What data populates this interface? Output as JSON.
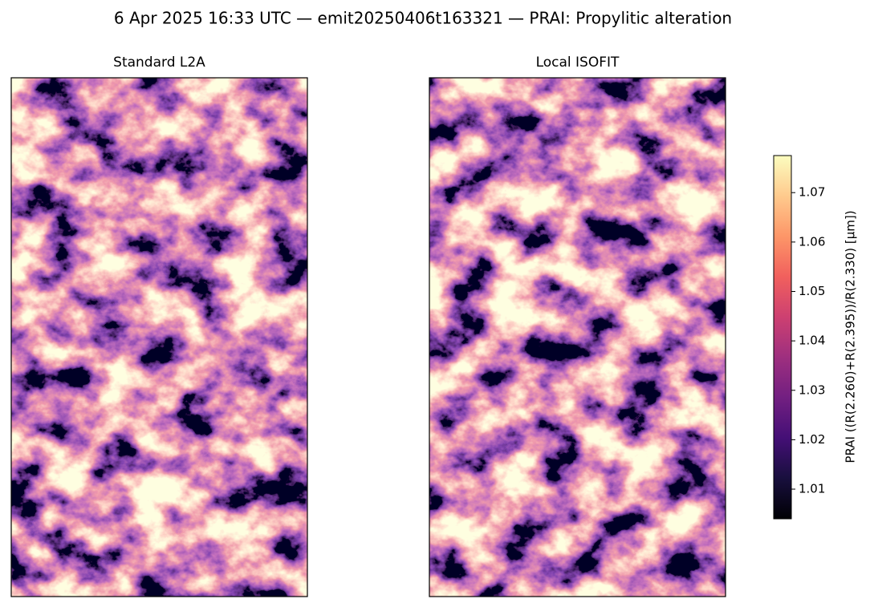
{
  "chart_data": {
    "type": "image",
    "title": "6 Apr 2025 16:33 UTC — emit20250406t163321 — PRAI: Propylitic alteration",
    "panels": [
      {
        "title": "Standard L2A"
      },
      {
        "title": "Local ISOFIT"
      }
    ],
    "colorbar": {
      "label": "PRAI  ((R(2.260)+R(2.395))/R(2.330)  [µm])",
      "colormap": "magma",
      "lim": [
        1.004,
        1.0775
      ],
      "ticks": [
        1.01,
        1.02,
        1.03,
        1.04,
        1.05,
        1.06,
        1.07
      ]
    }
  }
}
